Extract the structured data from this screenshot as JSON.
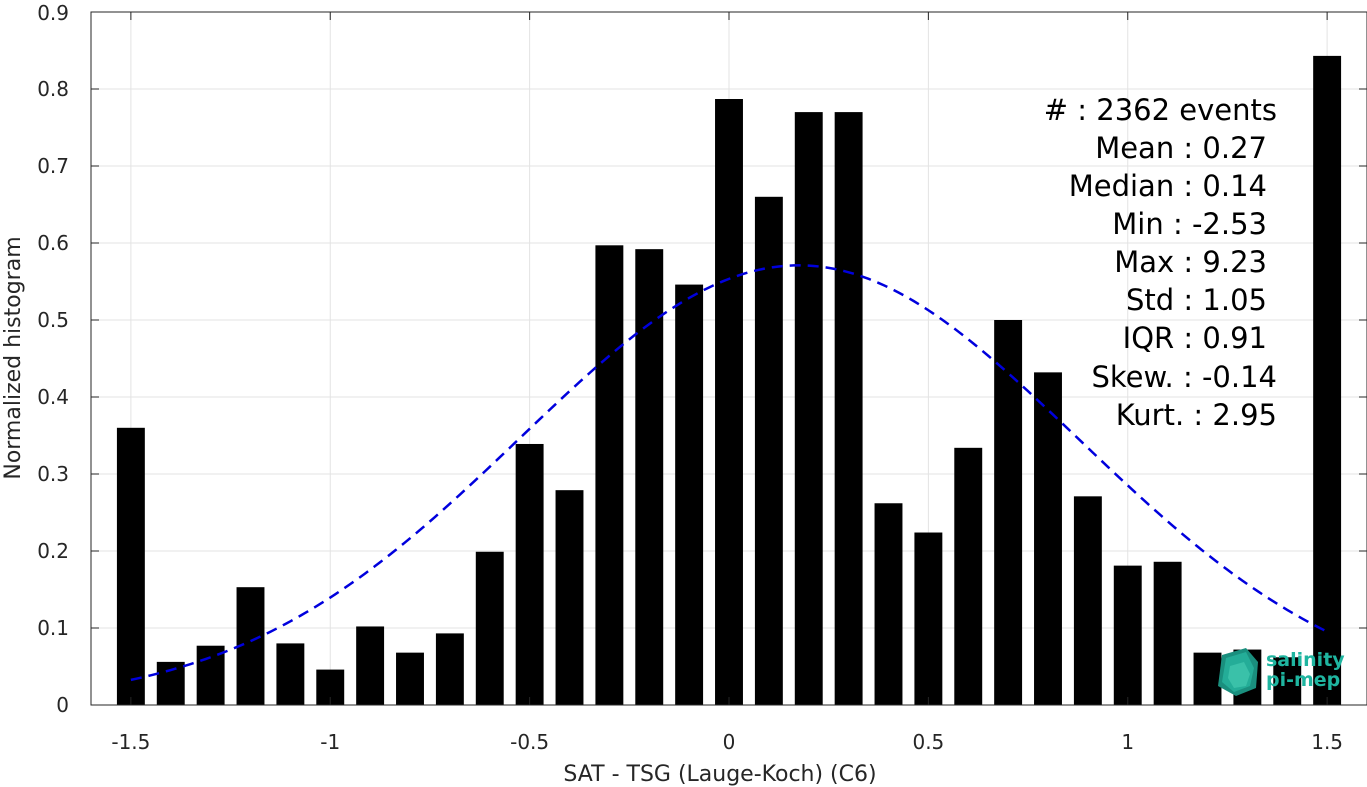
{
  "chart_data": {
    "type": "bar",
    "xlabel": "SAT - TSG (Lauge-Koch) (C6)",
    "ylabel": "Normalized histogram",
    "xlim": [
      -1.6,
      1.6
    ],
    "ylim": [
      0,
      0.9
    ],
    "xticks": [
      -1.5,
      -1,
      -0.5,
      0,
      0.5,
      1,
      1.5
    ],
    "xtick_labels": [
      "-1.5",
      "-1",
      "-0.5",
      "0",
      "0.5",
      "1",
      "1.5"
    ],
    "yticks": [
      0,
      0.1,
      0.2,
      0.3,
      0.4,
      0.5,
      0.6,
      0.7,
      0.8,
      0.9
    ],
    "ytick_labels": [
      "0",
      "0.1",
      "0.2",
      "0.3",
      "0.4",
      "0.5",
      "0.6",
      "0.7",
      "0.8",
      "0.9"
    ],
    "grid": true,
    "bar_width": 0.07,
    "bar_color": "#000000",
    "bins": [
      {
        "x": -1.5,
        "y": 0.36
      },
      {
        "x": -1.4,
        "y": 0.056
      },
      {
        "x": -1.3,
        "y": 0.077
      },
      {
        "x": -1.2,
        "y": 0.153
      },
      {
        "x": -1.1,
        "y": 0.08
      },
      {
        "x": -1.0,
        "y": 0.046
      },
      {
        "x": -0.9,
        "y": 0.102
      },
      {
        "x": -0.8,
        "y": 0.068
      },
      {
        "x": -0.7,
        "y": 0.093
      },
      {
        "x": -0.6,
        "y": 0.199
      },
      {
        "x": -0.5,
        "y": 0.339
      },
      {
        "x": -0.4,
        "y": 0.279
      },
      {
        "x": -0.3,
        "y": 0.597
      },
      {
        "x": -0.2,
        "y": 0.592
      },
      {
        "x": -0.1,
        "y": 0.546
      },
      {
        "x": 0.0,
        "y": 0.787
      },
      {
        "x": 0.1,
        "y": 0.66
      },
      {
        "x": 0.2,
        "y": 0.77
      },
      {
        "x": 0.3,
        "y": 0.77
      },
      {
        "x": 0.4,
        "y": 0.262
      },
      {
        "x": 0.5,
        "y": 0.224
      },
      {
        "x": 0.6,
        "y": 0.334
      },
      {
        "x": 0.7,
        "y": 0.5
      },
      {
        "x": 0.8,
        "y": 0.432
      },
      {
        "x": 0.9,
        "y": 0.271
      },
      {
        "x": 1.0,
        "y": 0.181
      },
      {
        "x": 1.1,
        "y": 0.186
      },
      {
        "x": 1.2,
        "y": 0.068
      },
      {
        "x": 1.3,
        "y": 0.072
      },
      {
        "x": 1.4,
        "y": 0.062
      },
      {
        "x": 1.5,
        "y": 0.843
      }
    ],
    "fit_curve": {
      "type": "normal",
      "mean": 0.175,
      "std": 0.7,
      "peak": 0.571,
      "x_range": [
        -1.5,
        1.5
      ],
      "color": "#0000dd",
      "style": "dashed"
    },
    "stats": [
      {
        "label": "#",
        "sep": " : ",
        "value": "2362 events"
      },
      {
        "label": "Mean",
        "sep": " : ",
        "value": "0.27"
      },
      {
        "label": "Median",
        "sep": " : ",
        "value": "0.14"
      },
      {
        "label": "Min",
        "sep": " : ",
        "value": "-2.53"
      },
      {
        "label": "Max",
        "sep": " : ",
        "value": "9.23"
      },
      {
        "label": "Std",
        "sep": " : ",
        "value": "1.05"
      },
      {
        "label": "IQR",
        "sep": " : ",
        "value": "0.91"
      },
      {
        "label": "Skew.",
        "sep": " : ",
        "value": "-0.14"
      },
      {
        "label": "Kurt.",
        "sep": " : ",
        "value": "2.95"
      }
    ]
  },
  "logo": {
    "line1": "salinity",
    "line2": "pi-mep",
    "color": "#1fb5a0"
  }
}
